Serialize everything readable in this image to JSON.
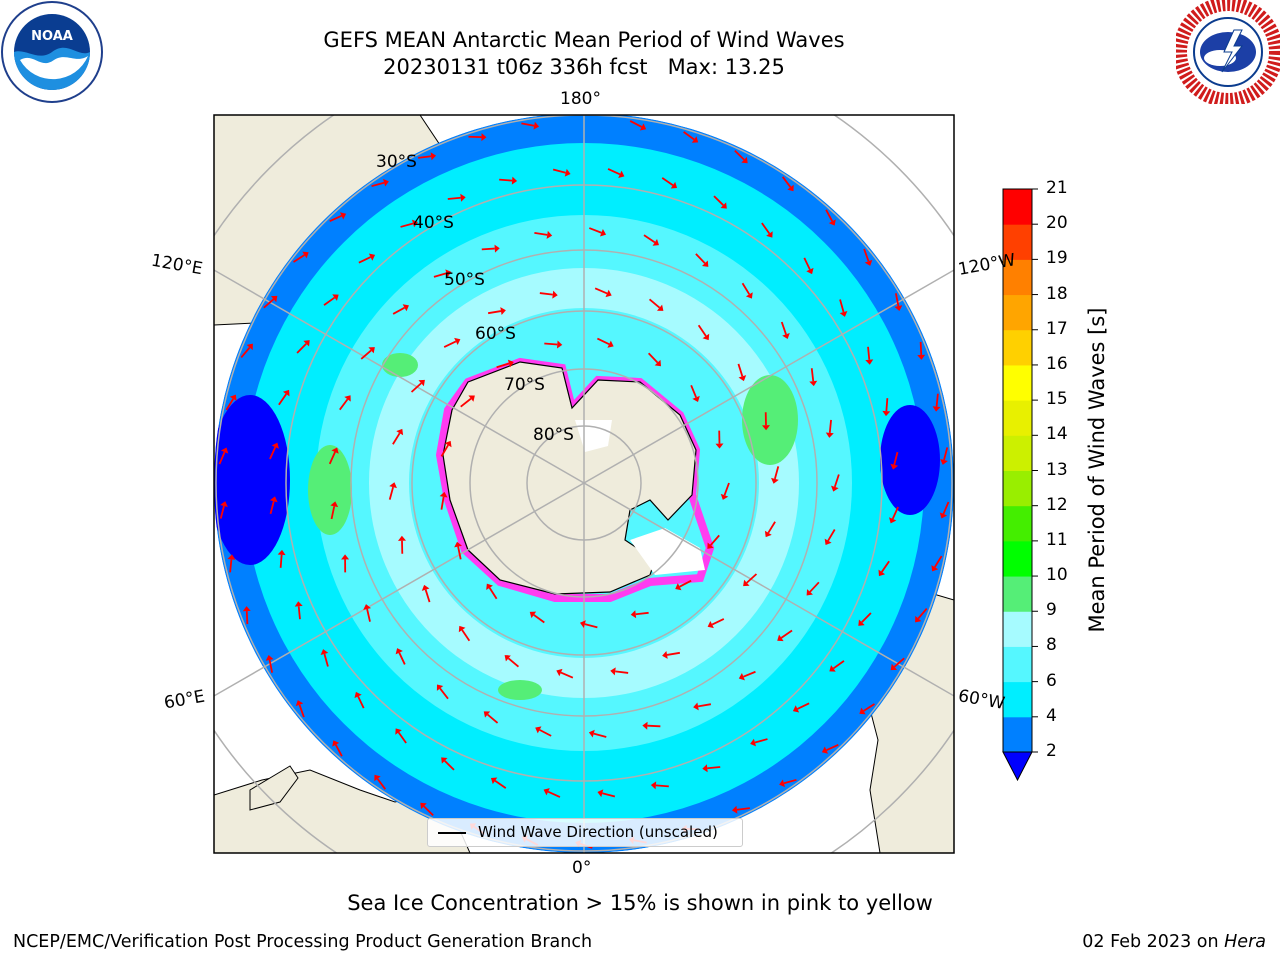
{
  "title": {
    "line1": "GEFS MEAN Antarctic Mean Period of Wind Waves",
    "line2": "20230131 t06z 336h fcst   Max: 13.25"
  },
  "logos": {
    "left": "noaa-logo",
    "right": "national-weather-service-logo"
  },
  "map": {
    "projection": "south-polar-stereographic",
    "longitude_labels": [
      "180°",
      "120°E",
      "120°W",
      "60°E",
      "60°W",
      "0°"
    ],
    "latitude_labels": [
      "30°S",
      "40°S",
      "50°S",
      "60°S",
      "70°S",
      "80°S"
    ],
    "legend_label": "Wind Wave Direction (unscaled)",
    "vector_color": "#ff0000",
    "land_color": "#efecdc",
    "sea_ice_color": "#ff3cf0"
  },
  "colorbar": {
    "label": "Mean Period of Wind Waves [s]",
    "ticks": [
      "2",
      "4",
      "6",
      "8",
      "9",
      "10",
      "11",
      "12",
      "13",
      "14",
      "15",
      "16",
      "17",
      "18",
      "19",
      "20",
      "21"
    ],
    "colors": [
      "#0000ff",
      "#0080ff",
      "#00eeff",
      "#55f7ff",
      "#a6fbff",
      "#55ee77",
      "#00ff00",
      "#44ee00",
      "#99ee00",
      "#ccf000",
      "#e8f000",
      "#ffff00",
      "#ffd000",
      "#ffa500",
      "#ff8000",
      "#ff4000",
      "#ff0000"
    ],
    "extend": "min"
  },
  "footer": {
    "ice_note": "Sea Ice Concentration > 15% is shown in pink to yellow",
    "credit": "NCEP/EMC/Verification Post Processing Product Generation Branch",
    "date": "02 Feb 2023 on ",
    "machine": "Hera"
  }
}
